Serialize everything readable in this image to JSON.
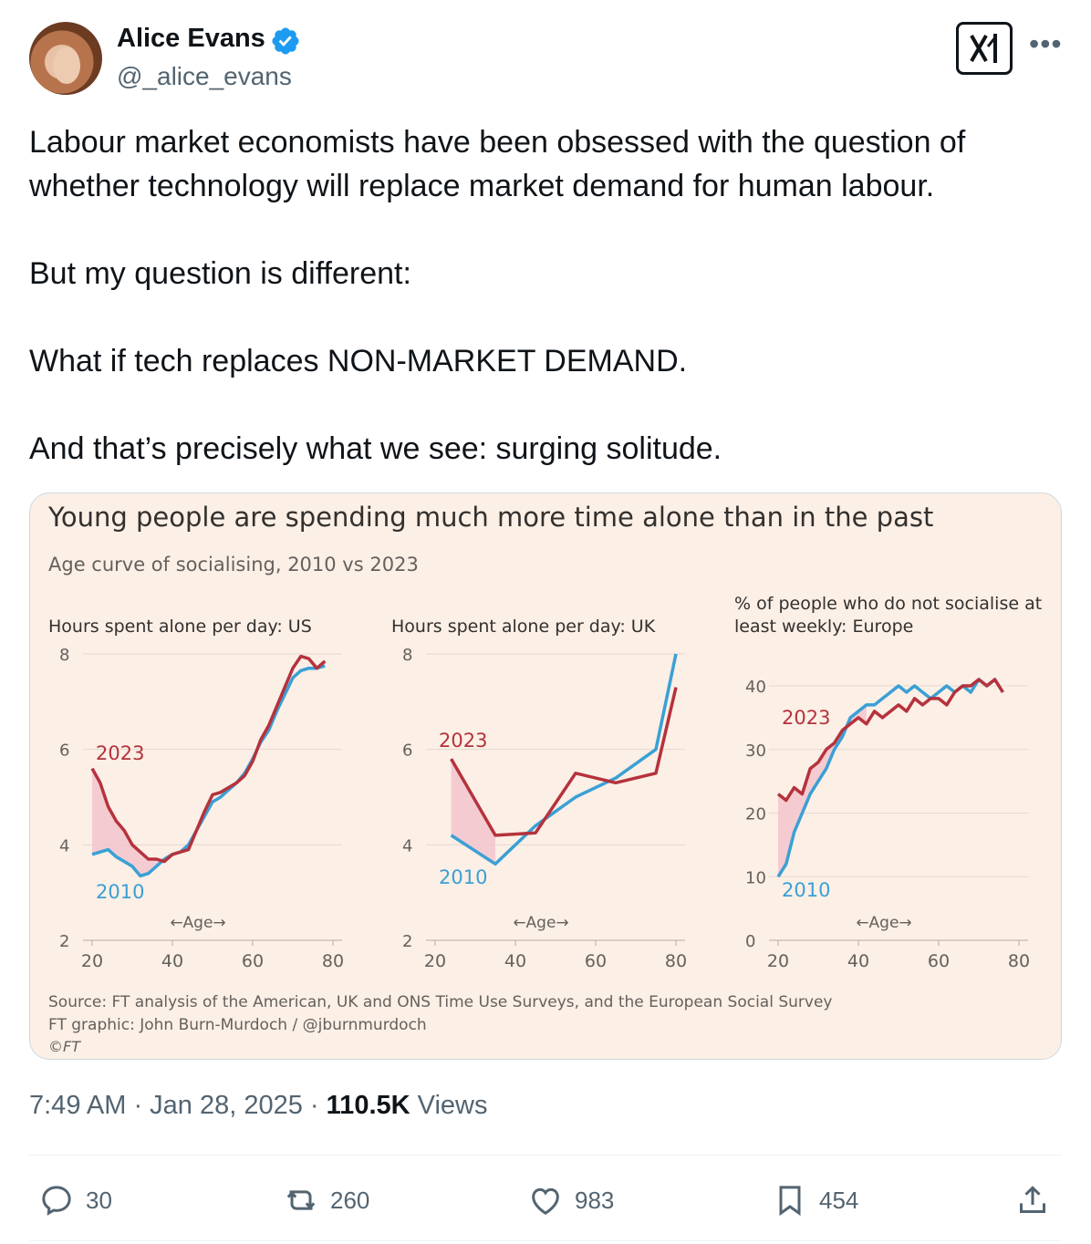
{
  "author": {
    "name": "Alice Evans",
    "handle": "@_alice_evans"
  },
  "tweet": {
    "paragraphs": [
      "Labour market economists have been obsessed with the question of whether technology will replace market demand for human labour.",
      "But my question is different:",
      "What if tech replaces NON-MARKET DEMAND.",
      "And that’s precisely what we see: surging solitude."
    ]
  },
  "graphic": {
    "title": "Young people are spending much more time alone than in the past",
    "subtitle": "Age curve of socialising, 2010 vs 2023",
    "source": "Source: FT analysis of the American, UK and ONS Time Use Surveys, and the European Social Survey",
    "credit": "FT graphic: John Burn-Murdoch / @jburnmurdoch",
    "copyright": "©FT",
    "age_label": "←Age→"
  },
  "chart_data": [
    {
      "type": "line",
      "title": "Hours spent alone per day: US",
      "ylim": [
        2,
        8
      ],
      "yticks": [
        2,
        4,
        6,
        8
      ],
      "xlim": [
        20,
        80
      ],
      "xticks": [
        20,
        40,
        60,
        80
      ],
      "xlabel": "←Age→",
      "series": [
        {
          "name": "2023",
          "color": "#b5323c",
          "x": [
            20,
            22,
            24,
            26,
            28,
            30,
            32,
            34,
            36,
            38,
            40,
            42,
            44,
            46,
            48,
            50,
            52,
            54,
            56,
            58,
            60,
            62,
            64,
            66,
            68,
            70,
            72,
            74,
            76,
            78
          ],
          "y": [
            5.6,
            5.3,
            4.8,
            4.5,
            4.3,
            4.0,
            3.85,
            3.7,
            3.7,
            3.65,
            3.8,
            3.85,
            3.9,
            4.3,
            4.7,
            5.05,
            5.1,
            5.2,
            5.3,
            5.45,
            5.75,
            6.2,
            6.5,
            6.9,
            7.3,
            7.7,
            7.95,
            7.9,
            7.7,
            7.85
          ]
        },
        {
          "name": "2010",
          "color": "#3aa0d5",
          "x": [
            20,
            22,
            24,
            26,
            28,
            30,
            32,
            34,
            36,
            38,
            40,
            42,
            44,
            46,
            48,
            50,
            52,
            54,
            56,
            58,
            60,
            62,
            64,
            66,
            68,
            70,
            72,
            74,
            76,
            78
          ],
          "y": [
            3.8,
            3.85,
            3.9,
            3.75,
            3.65,
            3.55,
            3.35,
            3.4,
            3.55,
            3.7,
            3.8,
            3.85,
            4.0,
            4.3,
            4.6,
            4.9,
            5.0,
            5.15,
            5.3,
            5.5,
            5.8,
            6.15,
            6.4,
            6.8,
            7.15,
            7.5,
            7.65,
            7.7,
            7.7,
            7.75
          ]
        }
      ]
    },
    {
      "type": "line",
      "title": "Hours spent alone per day: UK",
      "ylim": [
        2,
        8
      ],
      "yticks": [
        2,
        4,
        6,
        8
      ],
      "xlim": [
        20,
        80
      ],
      "xticks": [
        20,
        40,
        60,
        80
      ],
      "xlabel": "←Age→",
      "series": [
        {
          "name": "2023",
          "color": "#b5323c",
          "x": [
            24,
            35,
            45,
            55,
            65,
            75,
            80
          ],
          "y": [
            5.8,
            4.2,
            4.25,
            5.5,
            5.3,
            5.5,
            7.3
          ]
        },
        {
          "name": "2010",
          "color": "#3aa0d5",
          "x": [
            24,
            35,
            45,
            55,
            65,
            75,
            80
          ],
          "y": [
            4.2,
            3.6,
            4.4,
            5.0,
            5.4,
            6.0,
            8.0
          ]
        }
      ]
    },
    {
      "type": "line",
      "title": "% of people who do not socialise at least weekly: Europe",
      "ylim": [
        0,
        40
      ],
      "yticks": [
        0,
        10,
        20,
        30,
        40
      ],
      "xlim": [
        20,
        80
      ],
      "xticks": [
        20,
        40,
        60,
        80
      ],
      "xlabel": "←Age→",
      "series": [
        {
          "name": "2023",
          "color": "#b5323c",
          "x": [
            20,
            22,
            24,
            26,
            28,
            30,
            32,
            34,
            36,
            38,
            40,
            42,
            44,
            46,
            48,
            50,
            52,
            54,
            56,
            58,
            60,
            62,
            64,
            66,
            68,
            70,
            72,
            74,
            76
          ],
          "y": [
            23,
            22,
            24,
            23,
            27,
            28,
            30,
            31,
            33,
            34,
            35,
            34,
            36,
            35,
            36,
            37,
            36,
            38,
            37,
            38,
            38,
            37,
            39,
            40,
            40,
            41,
            40,
            41,
            39
          ]
        },
        {
          "name": "2010",
          "color": "#3aa0d5",
          "x": [
            20,
            22,
            24,
            26,
            28,
            30,
            32,
            34,
            36,
            38,
            40,
            42,
            44,
            46,
            48,
            50,
            52,
            54,
            56,
            58,
            60,
            62,
            64,
            66,
            68,
            70,
            72,
            74,
            76
          ],
          "y": [
            10,
            12,
            17,
            20,
            23,
            25,
            27,
            30,
            32,
            35,
            36,
            37,
            37,
            38,
            39,
            40,
            39,
            40,
            39,
            38,
            39,
            40,
            39,
            40,
            39,
            41,
            40,
            41,
            39
          ]
        }
      ]
    }
  ],
  "footer": {
    "time": "7:49 AM · Jan 28, 2025 · ",
    "views_count": "110.5K",
    "views_label": " Views"
  },
  "actions": {
    "replies": "30",
    "reposts": "260",
    "likes": "983",
    "bookmarks": "454"
  },
  "colors": {
    "accent": "#1d9bf0",
    "line_2023": "#b5323c",
    "line_2010": "#3aa0d5",
    "fill": "#f4c6cf",
    "card_bg": "#fbefe6"
  }
}
